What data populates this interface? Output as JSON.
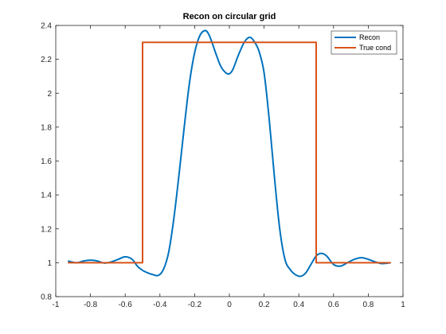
{
  "chart_data": {
    "type": "line",
    "title": "Recon on circular grid",
    "xlabel": "",
    "ylabel": "",
    "xlim": [
      -1,
      1
    ],
    "ylim": [
      0.8,
      2.4
    ],
    "xticks": [
      -1,
      -0.8,
      -0.6,
      -0.4,
      -0.2,
      0,
      0.2,
      0.4,
      0.6,
      0.8,
      1
    ],
    "xtick_labels": [
      "-1",
      "-0.8",
      "-0.6",
      "-0.4",
      "-0.2",
      "0",
      "0.2",
      "0.4",
      "0.6",
      "0.8",
      "1"
    ],
    "yticks": [
      0.8,
      1,
      1.2,
      1.4,
      1.6,
      1.8,
      2,
      2.2,
      2.4
    ],
    "ytick_labels": [
      "0.8",
      "1",
      "1.2",
      "1.4",
      "1.6",
      "1.8",
      "2",
      "2.2",
      "2.4"
    ],
    "grid": false,
    "legend_position": "top-right",
    "series": [
      {
        "name": "Recon",
        "color": "#0072BD",
        "x": [
          -0.93,
          -0.88,
          -0.84,
          -0.8,
          -0.76,
          -0.72,
          -0.68,
          -0.64,
          -0.6,
          -0.56,
          -0.53,
          -0.5,
          -0.47,
          -0.44,
          -0.41,
          -0.38,
          -0.35,
          -0.32,
          -0.29,
          -0.26,
          -0.23,
          -0.2,
          -0.17,
          -0.14,
          -0.12,
          -0.1,
          -0.08,
          -0.05,
          -0.02,
          0,
          0.02,
          0.05,
          0.08,
          0.1,
          0.12,
          0.14,
          0.17,
          0.2,
          0.23,
          0.26,
          0.29,
          0.32,
          0.35,
          0.38,
          0.41,
          0.44,
          0.47,
          0.5,
          0.53,
          0.56,
          0.6,
          0.64,
          0.68,
          0.72,
          0.76,
          0.8,
          0.84,
          0.88,
          0.93
        ],
        "y": [
          1.01,
          1.0,
          1.01,
          1.015,
          1.01,
          0.998,
          1.005,
          1.02,
          1.035,
          1.02,
          0.98,
          0.955,
          0.94,
          0.93,
          0.925,
          0.96,
          1.06,
          1.26,
          1.52,
          1.8,
          2.06,
          2.24,
          2.34,
          2.37,
          2.35,
          2.3,
          2.24,
          2.16,
          2.12,
          2.115,
          2.14,
          2.22,
          2.29,
          2.32,
          2.33,
          2.31,
          2.25,
          2.12,
          1.84,
          1.5,
          1.2,
          1.02,
          0.96,
          0.93,
          0.92,
          0.94,
          0.99,
          1.04,
          1.055,
          1.04,
          0.99,
          0.98,
          1.0,
          1.02,
          1.03,
          1.02,
          1.005,
          0.995,
          1.0
        ]
      },
      {
        "name": "True cond",
        "color": "#D95319",
        "x": [
          -0.93,
          -0.5,
          -0.5,
          0.5,
          0.5,
          0.93
        ],
        "y": [
          1.0,
          1.0,
          2.3,
          2.3,
          1.0,
          1.0
        ]
      }
    ]
  }
}
